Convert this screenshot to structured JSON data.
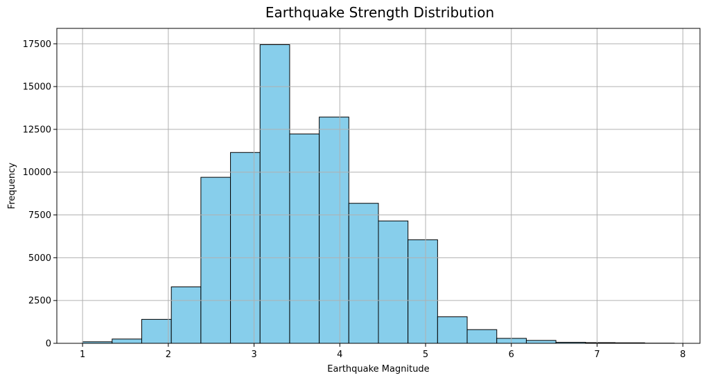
{
  "chart_data": {
    "type": "bar",
    "title": "Earthquake Strength Distribution",
    "xlabel": "Earthquake Magnitude",
    "ylabel": "Frequency",
    "xlim": [
      0.7,
      8.2
    ],
    "ylim": [
      0,
      18400
    ],
    "xticks": [
      1,
      2,
      3,
      4,
      5,
      6,
      7,
      8
    ],
    "yticks": [
      0,
      2500,
      5000,
      7500,
      10000,
      12500,
      15000,
      17500
    ],
    "grid": true,
    "bar_color": "#87CEEB",
    "edge_color": "#000000",
    "bin_edges": [
      1.0,
      1.345,
      1.69,
      2.035,
      2.38,
      2.725,
      3.07,
      3.415,
      3.76,
      4.105,
      4.45,
      4.795,
      5.14,
      5.485,
      5.83,
      6.175,
      6.52,
      6.865,
      7.21,
      7.555,
      7.9
    ],
    "values": [
      90,
      250,
      1400,
      3300,
      9700,
      11150,
      17450,
      12230,
      13220,
      8180,
      7150,
      6050,
      1550,
      800,
      290,
      170,
      60,
      40,
      30,
      10
    ]
  }
}
